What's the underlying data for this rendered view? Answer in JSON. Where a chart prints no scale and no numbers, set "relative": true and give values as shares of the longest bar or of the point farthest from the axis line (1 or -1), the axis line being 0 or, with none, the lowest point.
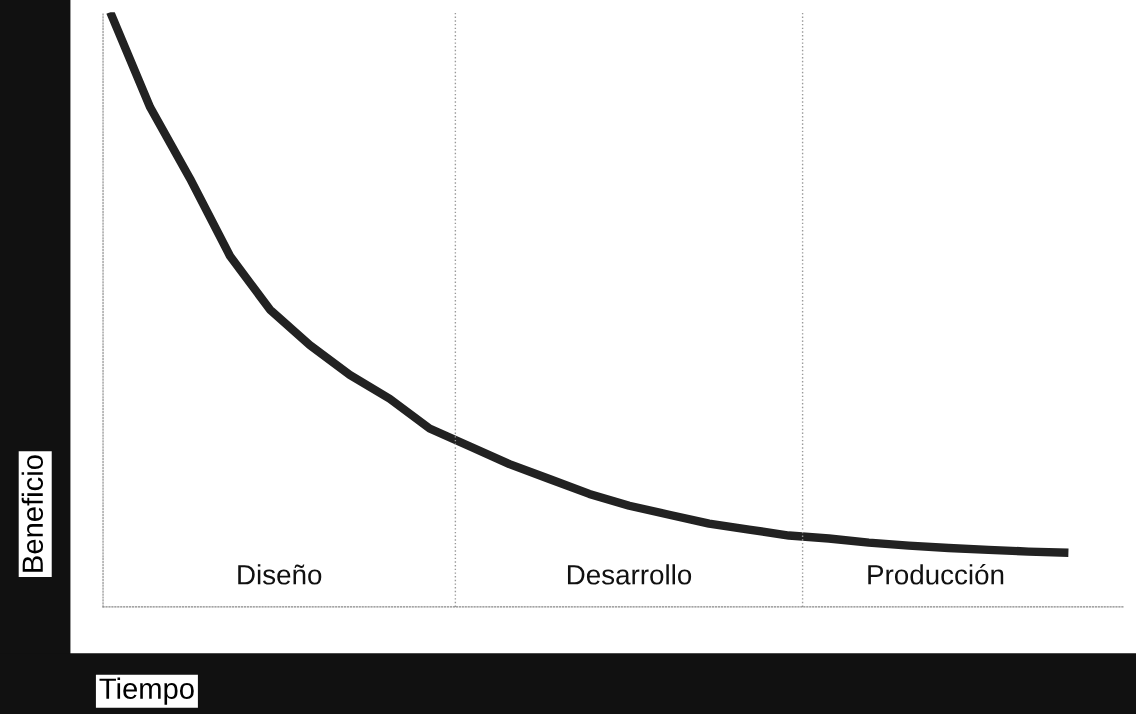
{
  "chart_data": {
    "type": "line",
    "relative": true,
    "xlabel": "Tiempo",
    "ylabel": "Beneficio",
    "categories": [
      null,
      null,
      null,
      null,
      null,
      null,
      null,
      null,
      null,
      null,
      null,
      null,
      null,
      null,
      null,
      null,
      null,
      null,
      null,
      null,
      null,
      null,
      null,
      null,
      null
    ],
    "series": [
      {
        "color": "#222222",
        "values": [
          1.0,
          0.84,
          0.72,
          0.59,
          0.5,
          0.44,
          0.39,
          0.35,
          0.3,
          0.27,
          0.24,
          0.215,
          0.19,
          0.17,
          0.155,
          0.14,
          0.13,
          0.12,
          0.115,
          0.108,
          0.103,
          0.099,
          0.096,
          0.093,
          0.091
        ]
      }
    ],
    "annotations": [
      "Diseño",
      "Desarrollo",
      "Producción"
    ],
    "grid": false
  }
}
